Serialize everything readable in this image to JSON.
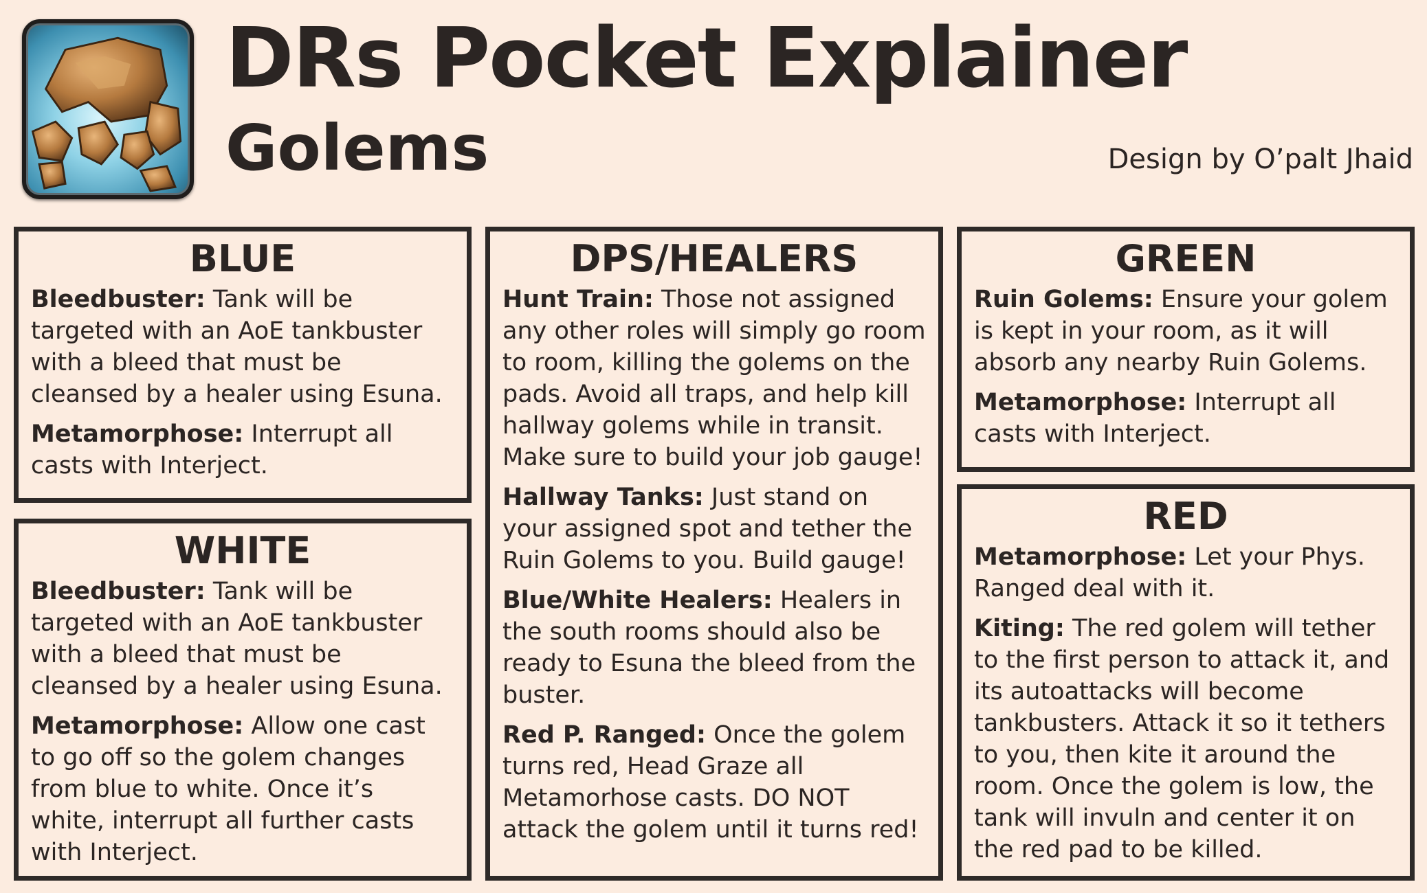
{
  "header": {
    "title": "DRs Pocket Explainer",
    "subtitle": "Golems",
    "credit": "Design by O’palt Jhaid",
    "icon": "golem-icon"
  },
  "panels": {
    "blue": {
      "heading": "BLUE",
      "entries": [
        {
          "label": "Bleedbuster:",
          "text": " Tank will be targeted with an AoE tankbuster with a bleed that must be cleansed by a healer using Esuna."
        },
        {
          "label": "Metamorphose:",
          "text": " Interrupt all casts with Interject."
        }
      ]
    },
    "white": {
      "heading": "WHITE",
      "entries": [
        {
          "label": "Bleedbuster:",
          "text": " Tank will be targeted with an AoE tankbuster with a bleed that must be cleansed by a healer using Esuna."
        },
        {
          "label": "Metamorphose:",
          "text": " Allow one cast to go off so the golem changes from blue to white. Once it’s white, interrupt all further casts with Interject."
        }
      ]
    },
    "dps": {
      "heading": "DPS/HEALERS",
      "entries": [
        {
          "label": "Hunt Train:",
          "text": " Those not assigned any other roles will simply go room to room, killing the golems on the pads. Avoid all traps, and help kill hallway golems while in transit. Make sure to build your job gauge!"
        },
        {
          "label": "Hallway Tanks:",
          "text": " Just stand on your assigned spot and tether the Ruin Golems to you. Build gauge!"
        },
        {
          "label": "Blue/White Healers:",
          "text": " Healers in the south rooms should also be ready to Esuna the bleed from the buster."
        },
        {
          "label": "Red P. Ranged:",
          "text": " Once the golem turns red, Head Graze all Metamorhose casts. DO NOT attack the golem until it turns red!"
        }
      ]
    },
    "green": {
      "heading": "GREEN",
      "entries": [
        {
          "label": "Ruin Golems:",
          "text": " Ensure your golem is kept in your room, as it will absorb any nearby Ruin Golems."
        },
        {
          "label": "Metamorphose:",
          "text": " Interrupt all casts with Interject."
        }
      ]
    },
    "red": {
      "heading": "RED",
      "entries": [
        {
          "label": "Metamorphose:",
          "text": " Let your Phys. Ranged deal with it."
        },
        {
          "label": "Kiting:",
          "text": " The red golem will tether to the first person to attack it, and its autoattacks will become tankbusters. Attack it so it tethers to you, then kite it around the room. Once the golem is low, the tank will invuln and center it on the red pad to be killed."
        }
      ]
    }
  }
}
